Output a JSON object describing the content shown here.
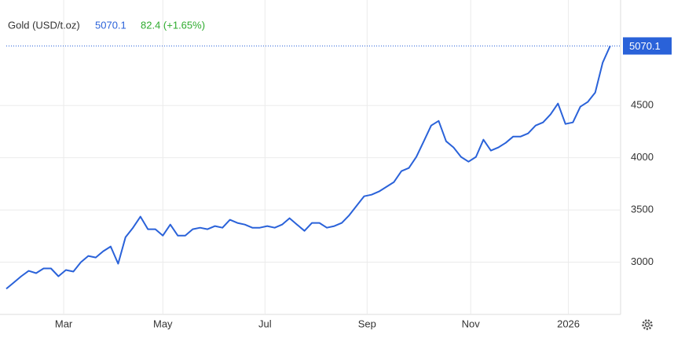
{
  "chart_data": {
    "type": "line",
    "title": "Gold (USD/t.oz)",
    "price": 5070.1,
    "change": "82.4 (+1.65%)",
    "series": [
      {
        "name": "Gold",
        "color": "#2a62d9",
        "values": [
          2745,
          2805,
          2865,
          2917,
          2895,
          2940,
          2940,
          2865,
          2925,
          2910,
          3000,
          3060,
          3045,
          3105,
          3150,
          2985,
          3240,
          3330,
          3436,
          3316,
          3316,
          3255,
          3360,
          3255,
          3255,
          3316,
          3330,
          3316,
          3346,
          3330,
          3406,
          3376,
          3360,
          3330,
          3330,
          3346,
          3330,
          3360,
          3421,
          3360,
          3300,
          3376,
          3376,
          3330,
          3346,
          3376,
          3450,
          3541,
          3631,
          3646,
          3677,
          3722,
          3767,
          3872,
          3902,
          4008,
          4158,
          4308,
          4353,
          4158,
          4098,
          4008,
          3962,
          4008,
          4173,
          4068,
          4098,
          4143,
          4203,
          4203,
          4233,
          4308,
          4338,
          4414,
          4519,
          4323,
          4338,
          4489,
          4534,
          4624,
          4910,
          5070.1
        ]
      }
    ],
    "xlim": [
      0,
      82.4
    ],
    "xticks": [
      {
        "value": 7.7,
        "label": "Mar"
      },
      {
        "value": 21.0,
        "label": "May"
      },
      {
        "value": 34.7,
        "label": "Jul"
      },
      {
        "value": 48.4,
        "label": "Sep"
      },
      {
        "value": 62.3,
        "label": "Nov"
      },
      {
        "value": 75.4,
        "label": "2026"
      }
    ],
    "ylim": [
      2500,
      5510
    ],
    "yticks": [
      3000,
      3500,
      4000,
      4500
    ],
    "grid": true
  }
}
